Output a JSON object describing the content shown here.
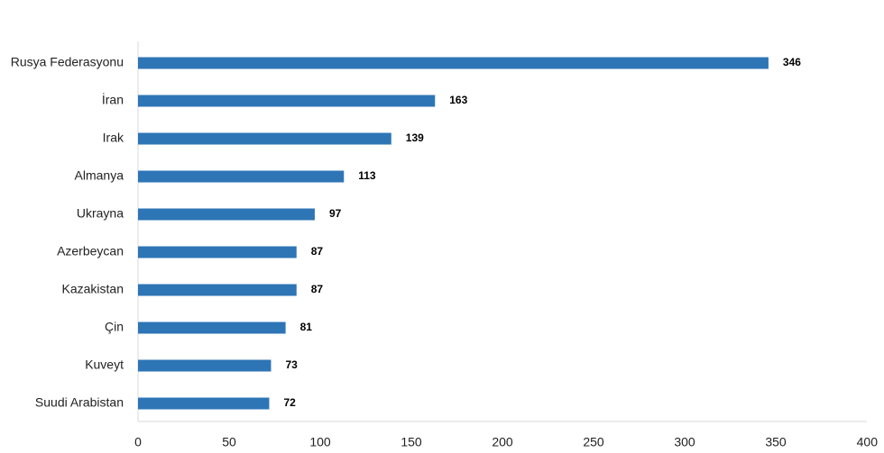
{
  "chart_data": {
    "type": "bar",
    "orientation": "horizontal",
    "categories": [
      "Rusya Federasyonu",
      "İran",
      "Irak",
      "Almanya",
      "Ukrayna",
      "Azerbeycan",
      "Kazakistan",
      "Çin",
      "Kuveyt",
      "Suudi Arabistan"
    ],
    "values": [
      346,
      163,
      139,
      113,
      97,
      87,
      87,
      81,
      73,
      72
    ],
    "xlim": [
      0,
      400
    ],
    "xticks": [
      0,
      50,
      100,
      150,
      200,
      250,
      300,
      350,
      400
    ],
    "title": "",
    "xlabel": "",
    "ylabel": "",
    "grid": false,
    "data_labels": true,
    "bar_color": "#2e75b6"
  }
}
